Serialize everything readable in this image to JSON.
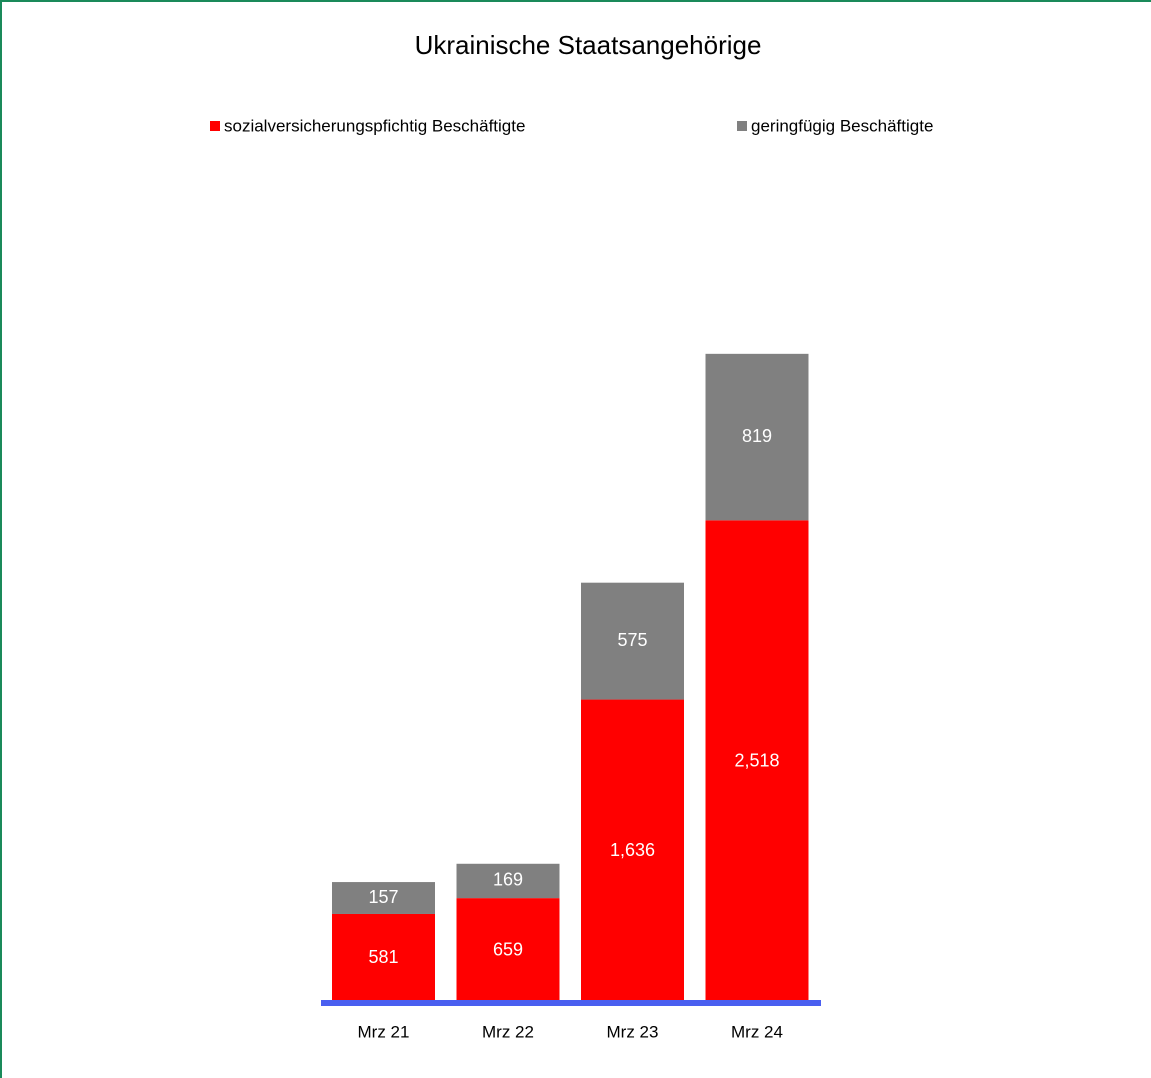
{
  "chart_data": {
    "type": "stacked_bar",
    "title": "Ukrainische Staatsangehörige",
    "categories": [
      "Mrz 21",
      "Mrz 22",
      "Mrz 23",
      "Mrz 24"
    ],
    "series": [
      {
        "name": "sozialversicherungspfichtig Beschäftigte",
        "color": "#ff0000",
        "values": [
          581,
          659,
          1636,
          2518
        ],
        "value_labels": [
          "581",
          "659",
          "1,636",
          "2,518"
        ]
      },
      {
        "name": "geringfügig Beschäftigte",
        "color": "#808080",
        "values": [
          157,
          169,
          575,
          819
        ]
      }
    ],
    "ylim": [
      143,
      3500
    ]
  }
}
